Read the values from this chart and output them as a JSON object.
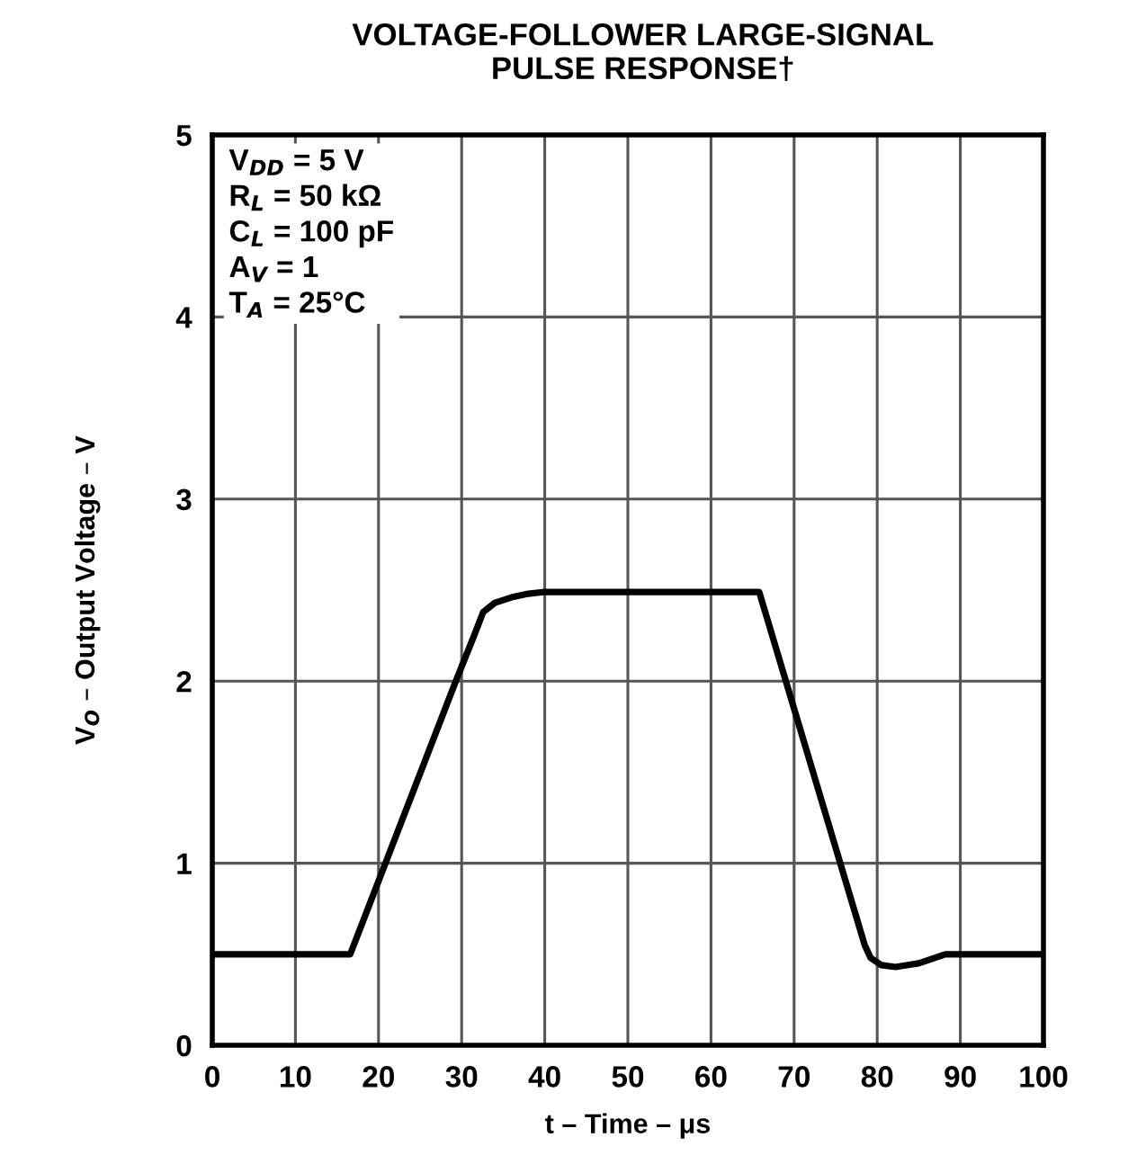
{
  "chart_data": {
    "type": "line",
    "title": "VOLTAGE-FOLLOWER LARGE-SIGNAL\nPULSE RESPONSE†",
    "xlabel": "t – Time – μs",
    "ylabel": "V$_{O}$ – Output Voltage – V",
    "annotations": [
      "V$_{DD}$ = 5 V",
      "R$_{L}$ = 50 kΩ",
      "C$_{L}$ = 100 pF",
      "A$_{V}$ = 1",
      "T$_{A}$ = 25°C"
    ],
    "series": [
      {
        "color": "#000000",
        "x": [
          0,
          16.6,
          29.3,
          31.5,
          32.6,
          34,
          36,
          38,
          40,
          50,
          60,
          65.8,
          78.5,
          79.2,
          80.5,
          82.2,
          85,
          88.2,
          92,
          100
        ],
        "values": [
          0.5,
          0.5,
          2,
          2.25,
          2.38,
          2.43,
          2.46,
          2.48,
          2.49,
          2.49,
          2.49,
          2.49,
          0.55,
          0.48,
          0.44,
          0.43,
          0.45,
          0.5,
          0.5,
          0.5
        ]
      }
    ],
    "xlim": [
      0,
      100
    ],
    "xticks": [
      0,
      10,
      20,
      30,
      40,
      50,
      60,
      70,
      80,
      90,
      100
    ],
    "ylim": [
      0,
      5
    ],
    "yticks": [
      0,
      1,
      2,
      3,
      4,
      5
    ],
    "grid": true,
    "legend": false,
    "marker": "none",
    "line_style": "solid"
  }
}
